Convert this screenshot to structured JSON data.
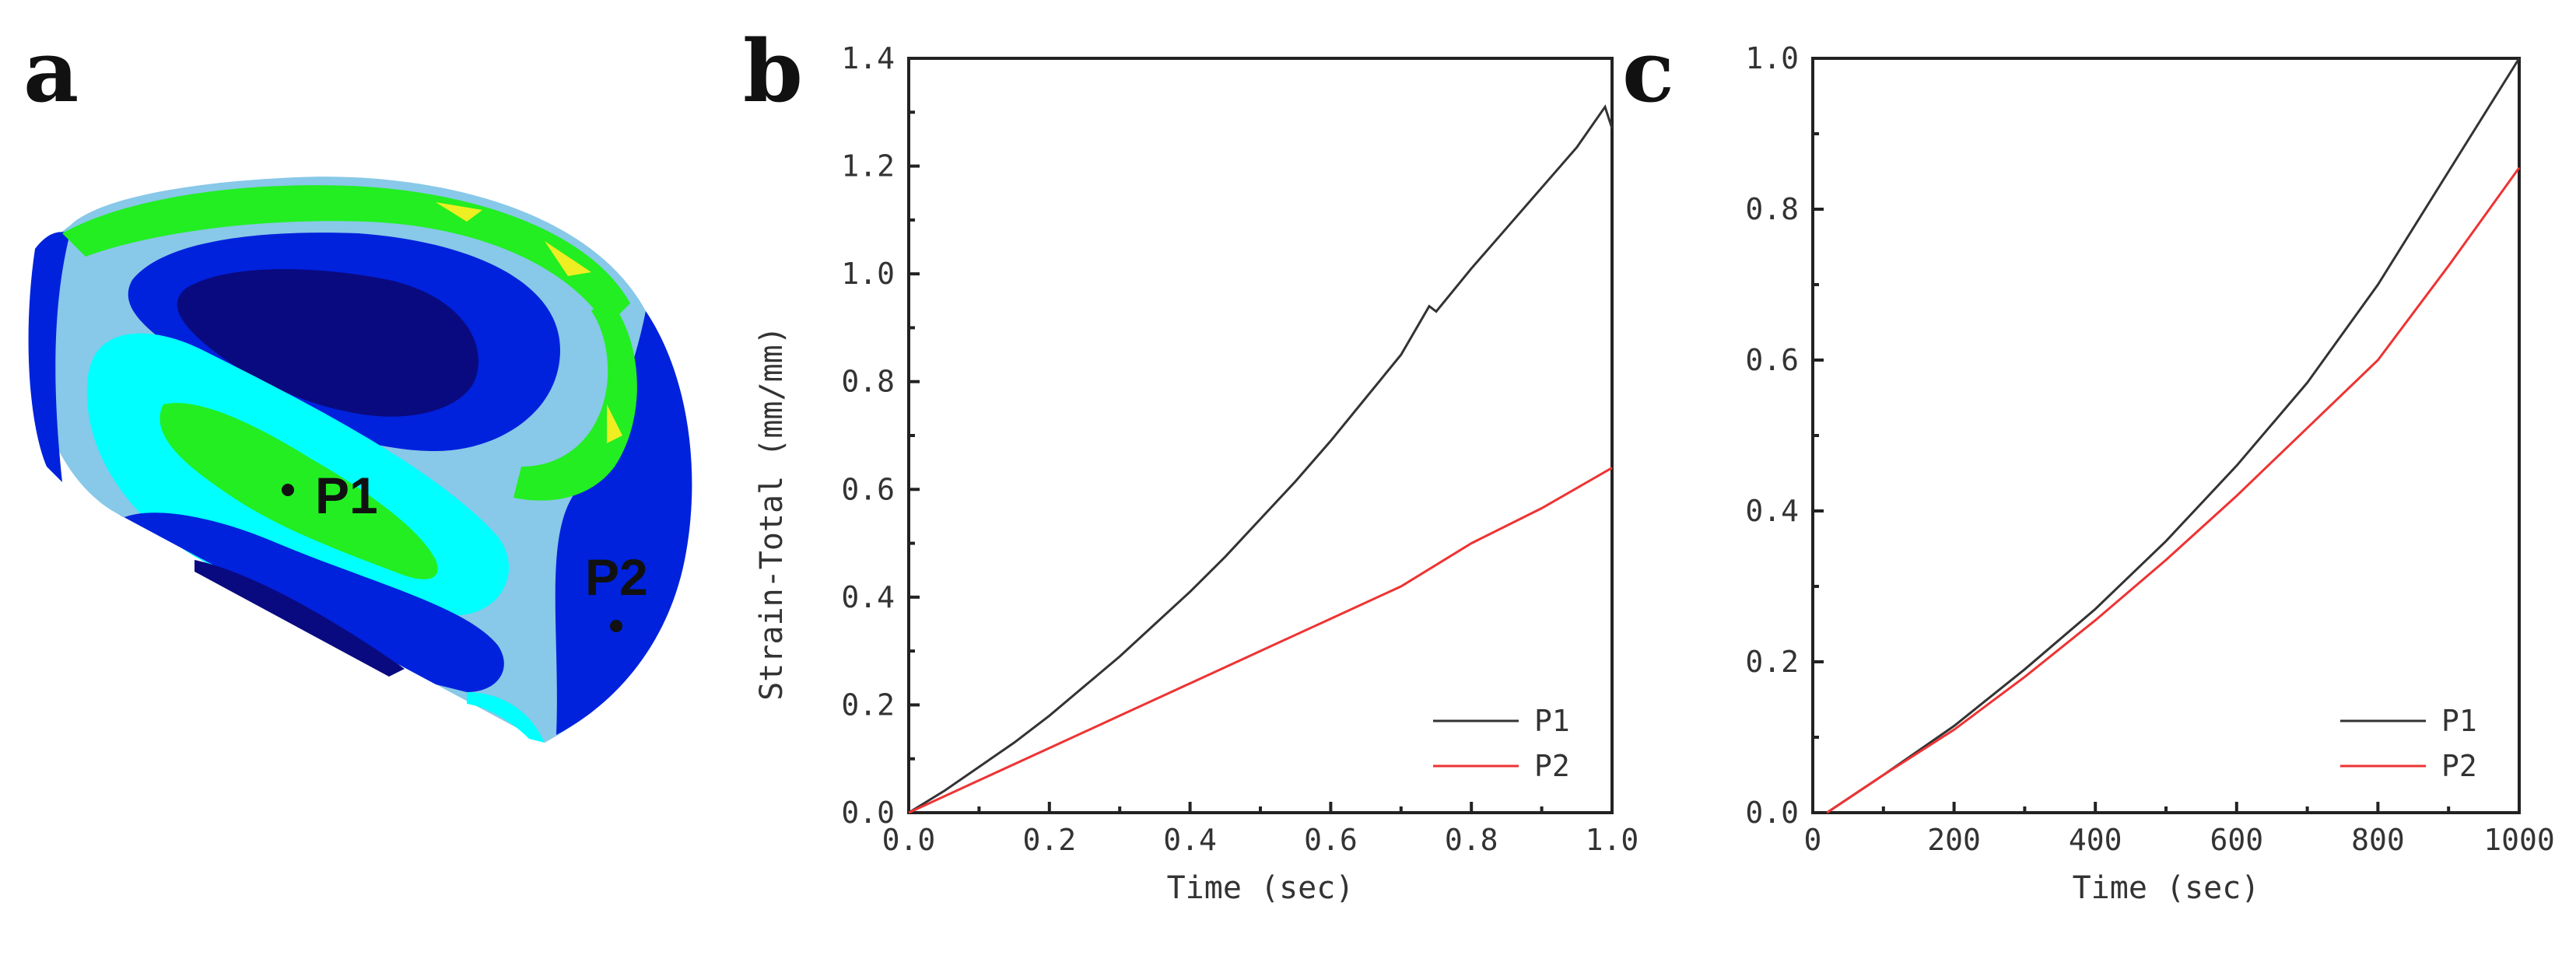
{
  "panels": {
    "a": {
      "letter": "a",
      "points": [
        "P1",
        "P2"
      ]
    },
    "b": {
      "letter": "b"
    },
    "c": {
      "letter": "c"
    }
  },
  "colors": {
    "P1": "#333333",
    "P2": "#ee3333",
    "contour_darkest": "#0a0a80",
    "contour_dark": "#0022dd",
    "contour_light": "#88c8e8",
    "contour_cyan": "#00ffff",
    "contour_green": "#22ee22",
    "contour_yellow": "#eeee22"
  },
  "chart_data": [
    {
      "type": "line",
      "panel": "b",
      "xlabel": "Time (sec)",
      "ylabel": "Strain-Total (mm/mm)",
      "xlim": [
        0.0,
        1.0
      ],
      "ylim": [
        0.0,
        1.4
      ],
      "xticks": [
        "0.0",
        "0.2",
        "0.4",
        "0.6",
        "0.8",
        "1.0"
      ],
      "yticks": [
        "0.0",
        "0.2",
        "0.4",
        "0.6",
        "0.8",
        "1.0",
        "1.2",
        "1.4"
      ],
      "legend_position": "bottom-right",
      "series": [
        {
          "name": "P1",
          "color": "#333333",
          "x": [
            0.0,
            0.05,
            0.1,
            0.15,
            0.2,
            0.25,
            0.3,
            0.35,
            0.4,
            0.45,
            0.5,
            0.55,
            0.6,
            0.65,
            0.7,
            0.74,
            0.75,
            0.8,
            0.85,
            0.9,
            0.95,
            0.99,
            1.0
          ],
          "y": [
            0.0,
            0.04,
            0.085,
            0.13,
            0.18,
            0.235,
            0.29,
            0.35,
            0.41,
            0.475,
            0.545,
            0.615,
            0.69,
            0.77,
            0.85,
            0.94,
            0.93,
            1.01,
            1.085,
            1.16,
            1.235,
            1.31,
            1.27
          ]
        },
        {
          "name": "P2",
          "color": "#ee3333",
          "x": [
            0.0,
            0.1,
            0.2,
            0.3,
            0.4,
            0.5,
            0.6,
            0.7,
            0.75,
            0.8,
            0.9,
            1.0
          ],
          "y": [
            0.0,
            0.06,
            0.12,
            0.18,
            0.24,
            0.3,
            0.36,
            0.42,
            0.46,
            0.5,
            0.565,
            0.64
          ]
        }
      ]
    },
    {
      "type": "line",
      "panel": "c",
      "xlabel": "Time (sec)",
      "ylabel": "",
      "xlim": [
        0,
        1000
      ],
      "ylim": [
        0.0,
        1.0
      ],
      "xticks": [
        "0",
        "200",
        "400",
        "600",
        "800",
        "1000"
      ],
      "yticks": [
        "0.0",
        "0.2",
        "0.4",
        "0.6",
        "0.8",
        "1.0"
      ],
      "legend_position": "bottom-right",
      "series": [
        {
          "name": "P1",
          "color": "#333333",
          "x": [
            20,
            100,
            200,
            300,
            400,
            500,
            600,
            700,
            800,
            900,
            1000
          ],
          "y": [
            0.0,
            0.05,
            0.115,
            0.19,
            0.27,
            0.36,
            0.46,
            0.57,
            0.7,
            0.85,
            1.0
          ]
        },
        {
          "name": "P2",
          "color": "#ee3333",
          "x": [
            20,
            100,
            200,
            300,
            400,
            500,
            600,
            700,
            800,
            900,
            1000
          ],
          "y": [
            0.0,
            0.05,
            0.11,
            0.18,
            0.255,
            0.335,
            0.42,
            0.51,
            0.6,
            0.725,
            0.855
          ]
        }
      ]
    }
  ]
}
